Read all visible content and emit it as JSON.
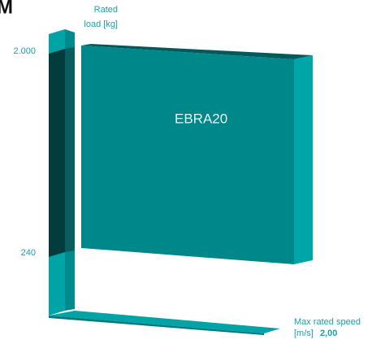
{
  "header": {
    "title": "M"
  },
  "y_axis": {
    "label_line1": "Rated",
    "label_line2": "load [kg]",
    "top_label": "2.000",
    "bottom_label": "240"
  },
  "box": {
    "label": "EBRA20"
  },
  "x_axis": {
    "label_line1": "Max rated speed",
    "unit": "[m/s]",
    "value": "2,00"
  }
}
